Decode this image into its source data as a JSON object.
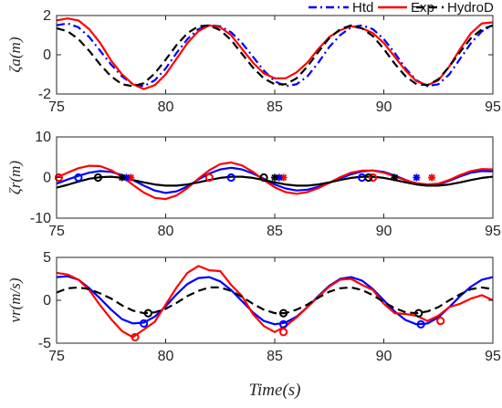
{
  "figure": {
    "xlabel": "Time(s)",
    "legend": {
      "location": "top-right",
      "entries": [
        "Htd",
        "Exp",
        "HydroD"
      ]
    },
    "colors": {
      "Htd": "#0000ff",
      "Exp": "#ff0000",
      "HydroD": "#000000",
      "axis": "#262626"
    }
  },
  "chart_data": [
    {
      "type": "line",
      "ylabel": "ζa(m)",
      "xlim": [
        75,
        95
      ],
      "ylim": [
        -2,
        2
      ],
      "xticks": [
        "75",
        "80",
        "85",
        "90",
        "95"
      ],
      "yticks": [
        "-2",
        "0",
        "2"
      ],
      "yticks_values": [
        -2,
        0,
        2
      ],
      "series": [
        {
          "name": "Htd",
          "style": "dash-dot",
          "x": [
            75,
            75.5,
            76,
            76.5,
            77,
            77.5,
            78,
            78.5,
            79,
            79.5,
            80,
            80.5,
            81,
            81.5,
            82,
            82.5,
            83,
            83.5,
            84,
            84.5,
            85,
            85.5,
            86,
            86.5,
            87,
            87.5,
            88,
            88.5,
            89,
            89.5,
            90,
            90.5,
            91,
            91.5,
            92,
            92.5,
            93,
            93.5,
            94,
            94.5,
            95
          ],
          "y": [
            1.5,
            1.6,
            1.4,
            0.9,
            0.2,
            -0.5,
            -1.1,
            -1.5,
            -1.6,
            -1.3,
            -0.7,
            0.1,
            0.8,
            1.3,
            1.5,
            1.45,
            1.15,
            0.6,
            -0.1,
            -0.8,
            -1.35,
            -1.6,
            -1.5,
            -1.1,
            -0.4,
            0.4,
            1.0,
            1.4,
            1.5,
            1.3,
            0.8,
            0.1,
            -0.7,
            -1.3,
            -1.6,
            -1.5,
            -1.0,
            -0.2,
            0.6,
            1.2,
            1.5
          ]
        },
        {
          "name": "Exp",
          "style": "solid",
          "x": [
            75,
            75.5,
            76,
            76.5,
            77,
            77.5,
            78,
            78.5,
            79,
            79.5,
            80,
            80.5,
            81,
            81.5,
            82,
            82.5,
            83,
            83.5,
            84,
            84.5,
            85,
            85.5,
            86,
            86.5,
            87,
            87.5,
            88,
            88.5,
            89,
            89.5,
            90,
            90.5,
            91,
            91.5,
            92,
            92.5,
            93,
            93.5,
            94,
            94.5,
            95
          ],
          "y": [
            1.75,
            1.85,
            1.75,
            1.3,
            0.6,
            -0.3,
            -1.0,
            -1.5,
            -1.75,
            -1.55,
            -1.0,
            -0.2,
            0.6,
            1.2,
            1.5,
            1.4,
            1.0,
            0.3,
            -0.4,
            -0.95,
            -1.2,
            -1.2,
            -0.9,
            -0.4,
            0.3,
            0.9,
            1.25,
            1.45,
            1.35,
            1.1,
            0.6,
            -0.1,
            -0.8,
            -1.35,
            -1.55,
            -1.3,
            -0.6,
            0.3,
            1.1,
            1.6,
            1.65
          ]
        },
        {
          "name": "HydroD",
          "style": "dashed",
          "x": [
            75,
            75.5,
            76,
            76.5,
            77,
            77.5,
            78,
            78.5,
            79,
            79.5,
            80,
            80.5,
            81,
            81.5,
            82,
            82.5,
            83,
            83.5,
            84,
            84.5,
            85,
            85.5,
            86,
            86.5,
            87,
            87.5,
            88,
            88.5,
            89,
            89.5,
            90,
            90.5,
            91,
            91.5,
            92,
            92.5,
            93,
            93.5,
            94,
            94.5,
            95
          ],
          "y": [
            1.35,
            1.2,
            0.8,
            0.2,
            -0.5,
            -1.1,
            -1.5,
            -1.6,
            -1.45,
            -0.95,
            -0.25,
            0.5,
            1.1,
            1.45,
            1.5,
            1.25,
            0.75,
            0.05,
            -0.65,
            -1.2,
            -1.5,
            -1.5,
            -1.2,
            -0.6,
            0.15,
            0.85,
            1.3,
            1.5,
            1.35,
            0.95,
            0.3,
            -0.45,
            -1.1,
            -1.5,
            -1.55,
            -1.25,
            -0.6,
            0.15,
            0.85,
            1.3,
            1.5
          ]
        }
      ]
    },
    {
      "type": "line",
      "ylabel": "ζr(m)",
      "xlim": [
        75,
        95
      ],
      "ylim": [
        -10,
        10
      ],
      "xticks": [
        "75",
        "80",
        "85",
        "90",
        "95"
      ],
      "yticks": [
        "-10",
        "0",
        "10"
      ],
      "yticks_values": [
        -10,
        0,
        10
      ],
      "series": [
        {
          "name": "Htd",
          "style": "solid",
          "x": [
            75,
            75.5,
            76,
            76.5,
            77,
            77.5,
            78,
            78.5,
            79,
            79.5,
            80,
            80.5,
            81,
            81.5,
            82,
            82.5,
            83,
            83.5,
            84,
            84.5,
            85,
            85.5,
            86,
            86.5,
            87,
            87.5,
            88,
            88.5,
            89,
            89.5,
            90,
            90.5,
            91,
            91.5,
            92,
            92.5,
            93,
            93.5,
            94,
            94.5,
            95
          ],
          "y": [
            -1.5,
            -0.5,
            0.4,
            1.2,
            1.6,
            1.4,
            0.6,
            -0.6,
            -2.0,
            -3.2,
            -3.8,
            -3.4,
            -2.2,
            -0.5,
            1.0,
            2.0,
            2.4,
            2.0,
            1.0,
            -0.3,
            -1.7,
            -2.7,
            -3.2,
            -3.0,
            -2.3,
            -1.3,
            -0.2,
            0.8,
            1.5,
            1.7,
            1.4,
            0.5,
            -0.6,
            -1.6,
            -2.0,
            -1.7,
            -0.8,
            0.3,
            1.2,
            1.6,
            1.5
          ]
        },
        {
          "name": "Exp",
          "style": "solid",
          "x": [
            75,
            75.5,
            76,
            76.5,
            77,
            77.5,
            78,
            78.5,
            79,
            79.5,
            80,
            80.5,
            81,
            81.5,
            82,
            82.5,
            83,
            83.5,
            84,
            84.5,
            85,
            85.5,
            86,
            86.5,
            87,
            87.5,
            88,
            88.5,
            89,
            89.5,
            90,
            90.5,
            91,
            91.5,
            92,
            92.5,
            93,
            93.5,
            94,
            94.5,
            95
          ],
          "y": [
            0.0,
            1.2,
            2.3,
            2.9,
            2.8,
            1.8,
            0.2,
            -1.8,
            -3.7,
            -5.0,
            -5.3,
            -4.4,
            -2.6,
            -0.3,
            1.8,
            3.3,
            3.7,
            3.0,
            1.4,
            -0.6,
            -2.4,
            -3.6,
            -4.0,
            -3.6,
            -2.6,
            -1.3,
            0.1,
            1.2,
            1.7,
            1.7,
            1.2,
            0.3,
            -0.7,
            -1.4,
            -1.7,
            -1.5,
            -0.6,
            0.6,
            1.6,
            2.1,
            2.0
          ]
        },
        {
          "name": "HydroD",
          "style": "solid",
          "x": [
            75,
            75.5,
            76,
            76.5,
            77,
            77.5,
            78,
            78.5,
            79,
            79.5,
            80,
            80.5,
            81,
            81.5,
            82,
            82.5,
            83,
            83.5,
            84,
            84.5,
            85,
            85.5,
            86,
            86.5,
            87,
            87.5,
            88,
            88.5,
            89,
            89.5,
            90,
            90.5,
            91,
            91.5,
            92,
            92.5,
            93,
            93.5,
            94,
            94.5,
            95
          ],
          "y": [
            -2.5,
            -1.8,
            -1.0,
            -0.3,
            0.1,
            0.2,
            -0.1,
            -0.6,
            -1.2,
            -1.7,
            -2.0,
            -2.0,
            -1.7,
            -1.2,
            -0.6,
            -0.1,
            0.2,
            0.2,
            -0.1,
            -0.6,
            -1.2,
            -1.7,
            -2.0,
            -2.0,
            -1.7,
            -1.2,
            -0.6,
            -0.1,
            0.2,
            0.2,
            -0.1,
            -0.6,
            -1.2,
            -1.7,
            -2.0,
            -2.0,
            -1.7,
            -1.2,
            -0.6,
            -0.1,
            0.2
          ]
        }
      ],
      "markers": [
        {
          "series": "Exp",
          "shape": "circle",
          "points": [
            [
              75.1,
              0
            ],
            [
              82.0,
              0
            ],
            [
              89.5,
              0
            ]
          ]
        },
        {
          "series": "Exp",
          "shape": "star",
          "points": [
            [
              78.4,
              0
            ],
            [
              85.4,
              0
            ],
            [
              92.2,
              0
            ]
          ]
        },
        {
          "series": "Htd",
          "shape": "circle",
          "points": [
            [
              76.0,
              0
            ],
            [
              83.0,
              0
            ],
            [
              89.0,
              0
            ]
          ]
        },
        {
          "series": "Htd",
          "shape": "star",
          "points": [
            [
              78.2,
              0
            ],
            [
              85.2,
              0
            ],
            [
              91.5,
              0
            ]
          ]
        },
        {
          "series": "HydroD",
          "shape": "circle",
          "points": [
            [
              76.9,
              0
            ],
            [
              84.5,
              0
            ],
            [
              89.3,
              0
            ]
          ]
        },
        {
          "series": "HydroD",
          "shape": "star",
          "points": [
            [
              78.0,
              0
            ],
            [
              85.0,
              0
            ],
            [
              90.5,
              0
            ]
          ]
        }
      ]
    },
    {
      "type": "line",
      "ylabel": "vr(m/s)",
      "xlim": [
        75,
        95
      ],
      "ylim": [
        -5,
        5
      ],
      "xticks": [
        "75",
        "80",
        "85",
        "90",
        "95"
      ],
      "yticks": [
        "-5",
        "0",
        "5"
      ],
      "yticks_values": [
        -5,
        0,
        5
      ],
      "series": [
        {
          "name": "Htd",
          "style": "solid",
          "x": [
            75,
            75.5,
            76,
            76.5,
            77,
            77.5,
            78,
            78.5,
            79,
            79.5,
            80,
            80.5,
            81,
            81.5,
            82,
            82.5,
            83,
            83.5,
            84,
            84.5,
            85,
            85.5,
            86,
            86.5,
            87,
            87.5,
            88,
            88.5,
            89,
            89.5,
            90,
            90.5,
            91,
            91.5,
            92,
            92.5,
            93,
            93.5,
            94,
            94.5,
            95
          ],
          "y": [
            2.7,
            2.8,
            2.4,
            1.4,
            0.2,
            -1.1,
            -2.2,
            -2.7,
            -2.6,
            -1.9,
            -0.7,
            0.7,
            1.9,
            2.6,
            2.7,
            2.2,
            1.2,
            -0.1,
            -1.4,
            -2.4,
            -2.8,
            -2.6,
            -1.9,
            -0.8,
            0.5,
            1.7,
            2.5,
            2.7,
            2.3,
            1.3,
            0.0,
            -1.3,
            -2.3,
            -2.8,
            -2.7,
            -2.0,
            -0.8,
            0.5,
            1.6,
            2.4,
            2.7
          ]
        },
        {
          "name": "Exp",
          "style": "solid",
          "x": [
            75,
            75.5,
            76,
            76.5,
            77,
            77.5,
            78,
            78.5,
            79,
            79.5,
            80,
            80.5,
            81,
            81.5,
            82,
            82.5,
            83,
            83.5,
            84,
            84.5,
            85,
            85.5,
            86,
            86.5,
            87,
            87.5,
            88,
            88.5,
            89,
            89.5,
            90,
            90.5,
            91,
            91.5,
            92,
            92.5,
            93,
            93.5,
            94,
            94.5,
            95
          ],
          "y": [
            3.2,
            3.0,
            2.4,
            1.2,
            -0.6,
            -2.2,
            -3.6,
            -4.3,
            -3.4,
            -2.5,
            -0.5,
            1.5,
            3.2,
            4.0,
            3.5,
            3.4,
            1.8,
            0.5,
            -1.6,
            -3.0,
            -3.7,
            -3.0,
            -2.0,
            -0.8,
            0.4,
            1.6,
            2.4,
            2.5,
            1.8,
            1.2,
            -0.4,
            -1.5,
            -1.6,
            -1.8,
            -2.4,
            -1.8,
            -0.8,
            -0.4,
            0.2,
            0.6,
            0.0
          ]
        },
        {
          "name": "HydroD",
          "style": "dashed",
          "x": [
            75,
            75.5,
            76,
            76.5,
            77,
            77.5,
            78,
            78.5,
            79,
            79.5,
            80,
            80.5,
            81,
            81.5,
            82,
            82.5,
            83,
            83.5,
            84,
            84.5,
            85,
            85.5,
            86,
            86.5,
            87,
            87.5,
            88,
            88.5,
            89,
            89.5,
            90,
            90.5,
            91,
            91.5,
            92,
            92.5,
            93,
            93.5,
            94,
            94.5,
            95
          ],
          "y": [
            0.9,
            1.4,
            1.5,
            1.3,
            0.8,
            0.2,
            -0.6,
            -1.2,
            -1.5,
            -1.4,
            -1.0,
            -0.3,
            0.5,
            1.1,
            1.5,
            1.5,
            1.1,
            0.4,
            -0.4,
            -1.1,
            -1.5,
            -1.5,
            -1.1,
            -0.5,
            0.3,
            1.0,
            1.4,
            1.5,
            1.2,
            0.6,
            -0.2,
            -0.9,
            -1.4,
            -1.5,
            -1.3,
            -0.8,
            0.0,
            0.7,
            1.3,
            1.5,
            1.3
          ]
        }
      ],
      "markers": [
        {
          "series": "Htd",
          "shape": "circle",
          "points": [
            [
              79.0,
              -2.7
            ],
            [
              85.4,
              -2.8
            ],
            [
              91.7,
              -2.8
            ]
          ]
        },
        {
          "series": "Exp",
          "shape": "circle",
          "points": [
            [
              78.6,
              -4.3
            ],
            [
              85.4,
              -3.7
            ],
            [
              92.6,
              -2.4
            ]
          ]
        },
        {
          "series": "HydroD",
          "shape": "circle",
          "points": [
            [
              79.2,
              -1.5
            ],
            [
              85.4,
              -1.5
            ],
            [
              91.6,
              -1.5
            ]
          ]
        }
      ]
    }
  ]
}
